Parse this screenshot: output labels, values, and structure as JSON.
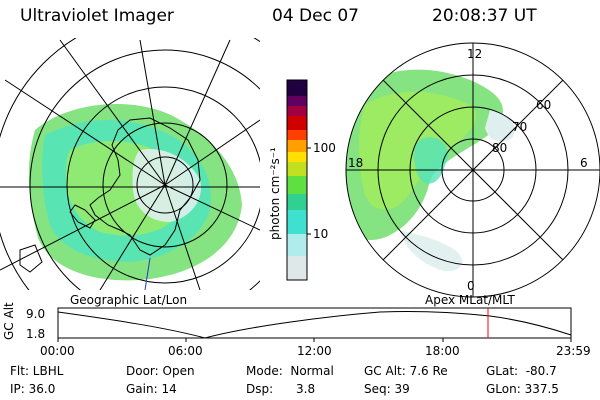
{
  "header": {
    "instrument": "Ultraviolet Imager",
    "date": "04 Dec 07",
    "time": "20:08:37 UT"
  },
  "left_panel": {
    "caption": "Geographic Lat/Lon"
  },
  "right_panel": {
    "caption": "Apex  MLat/MLT",
    "mlt_labels": [
      "12",
      "18",
      "6",
      "0"
    ],
    "mlat_labels": [
      "60",
      "70",
      "80"
    ]
  },
  "colorbar": {
    "unit_label": "photon cm⁻²s⁻¹",
    "ticks": [
      "100",
      "10"
    ],
    "scale": "log",
    "colors": [
      "#dfe8e8",
      "#b0ecec",
      "#40e0d0",
      "#30d090",
      "#60e040",
      "#c0e020",
      "#ffe000",
      "#ffa000",
      "#ff4000",
      "#d00000",
      "#a00040",
      "#600060",
      "#200040"
    ]
  },
  "gc_alt_plot": {
    "ylabel": "GC Alt",
    "ytick_top": "9.0",
    "ytick_bottom": "1.8",
    "xticks": [
      "00:00",
      "06:00",
      "12:00",
      "18:00",
      "23:59"
    ],
    "current_time_marker": "20:08",
    "marker_color": "#ff0000"
  },
  "info": {
    "flt": "Flt: LBHL",
    "ip": "IP: 36.0",
    "door": "Door: Open",
    "gain": "Gain: 14",
    "mode": "Mode:  Normal",
    "dsp": "Dsp:      3.8",
    "gcalt": "GC Alt: 7.6 Re",
    "seq": "Seq: 39",
    "glat": "GLat:  -80.7",
    "glon": "GLon: 337.5"
  }
}
